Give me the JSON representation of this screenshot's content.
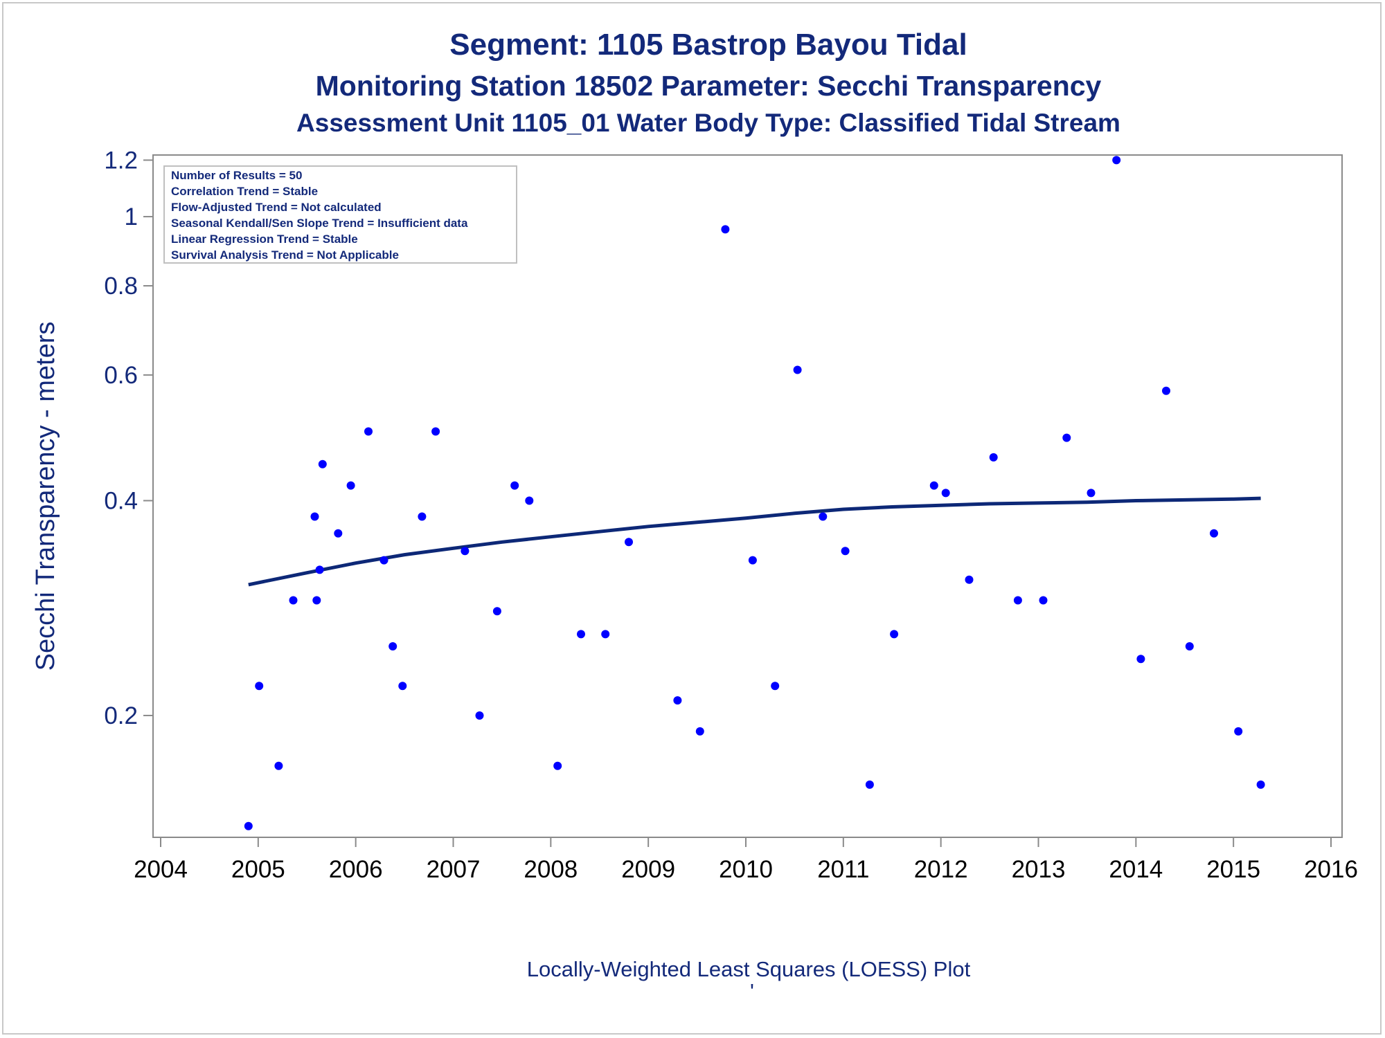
{
  "titles": {
    "line1": "Segment: 1105  Bastrop Bayou Tidal",
    "line2": "Monitoring Station 18502 Parameter: Secchi Transparency",
    "line3": "Assessment Unit 1105_01   Water Body Type: Classified Tidal Stream"
  },
  "stats_box": [
    "Number of Results = 50",
    "Correlation Trend = Stable",
    "Flow-Adjusted Trend = Not calculated",
    "Seasonal Kendall/Sen Slope Trend = Insufficient data",
    "Linear Regression Trend = Stable",
    "Survival Analysis Trend = Not Applicable"
  ],
  "footnote": "Locally-Weighted Least Squares (LOESS) Plot",
  "footnote_mark": "'",
  "colors": {
    "text": "#13297a",
    "points": "#0000ff",
    "loess_line": "#0d2877",
    "axis": "#8a8a8a"
  },
  "chart_data": {
    "type": "scatter",
    "y_scale": "log",
    "xlabel": "",
    "ylabel": "Secchi Transparency - meters",
    "xlim": [
      2004,
      2016
    ],
    "ylim": [
      0.135,
      1.22
    ],
    "x_ticks": [
      2004,
      2005,
      2006,
      2007,
      2008,
      2009,
      2010,
      2011,
      2012,
      2013,
      2014,
      2015,
      2016
    ],
    "y_ticks": [
      0.2,
      0.4,
      0.6,
      0.8,
      1,
      1.2
    ],
    "y_tick_labels": [
      "0.2",
      "0.4",
      "0.6",
      "0.8",
      "1",
      "1.2"
    ],
    "grid": false,
    "series": [
      {
        "kind": "points",
        "points": [
          {
            "x": 2004.9,
            "y": 0.14
          },
          {
            "x": 2005.01,
            "y": 0.22
          },
          {
            "x": 2005.21,
            "y": 0.17
          },
          {
            "x": 2005.36,
            "y": 0.29
          },
          {
            "x": 2005.58,
            "y": 0.38
          },
          {
            "x": 2005.6,
            "y": 0.29
          },
          {
            "x": 2005.63,
            "y": 0.32
          },
          {
            "x": 2005.66,
            "y": 0.45
          },
          {
            "x": 2005.82,
            "y": 0.36
          },
          {
            "x": 2005.95,
            "y": 0.42
          },
          {
            "x": 2006.13,
            "y": 0.5
          },
          {
            "x": 2006.29,
            "y": 0.33
          },
          {
            "x": 2006.38,
            "y": 0.25
          },
          {
            "x": 2006.48,
            "y": 0.22
          },
          {
            "x": 2006.68,
            "y": 0.38
          },
          {
            "x": 2006.82,
            "y": 0.5
          },
          {
            "x": 2007.12,
            "y": 0.34
          },
          {
            "x": 2007.27,
            "y": 0.2
          },
          {
            "x": 2007.45,
            "y": 0.28
          },
          {
            "x": 2007.63,
            "y": 0.42
          },
          {
            "x": 2007.78,
            "y": 0.4
          },
          {
            "x": 2008.07,
            "y": 0.17
          },
          {
            "x": 2008.31,
            "y": 0.26
          },
          {
            "x": 2008.56,
            "y": 0.26
          },
          {
            "x": 2008.8,
            "y": 0.35
          },
          {
            "x": 2009.3,
            "y": 0.21
          },
          {
            "x": 2009.53,
            "y": 0.19
          },
          {
            "x": 2009.79,
            "y": 0.96
          },
          {
            "x": 2010.07,
            "y": 0.33
          },
          {
            "x": 2010.3,
            "y": 0.22
          },
          {
            "x": 2010.53,
            "y": 0.61
          },
          {
            "x": 2010.79,
            "y": 0.38
          },
          {
            "x": 2011.02,
            "y": 0.34
          },
          {
            "x": 2011.27,
            "y": 0.16
          },
          {
            "x": 2011.52,
            "y": 0.26
          },
          {
            "x": 2011.93,
            "y": 0.42
          },
          {
            "x": 2012.05,
            "y": 0.41
          },
          {
            "x": 2012.29,
            "y": 0.31
          },
          {
            "x": 2012.54,
            "y": 0.46
          },
          {
            "x": 2012.79,
            "y": 0.29
          },
          {
            "x": 2013.05,
            "y": 0.29
          },
          {
            "x": 2013.29,
            "y": 0.49
          },
          {
            "x": 2013.54,
            "y": 0.41
          },
          {
            "x": 2013.8,
            "y": 1.2
          },
          {
            "x": 2014.05,
            "y": 0.24
          },
          {
            "x": 2014.31,
            "y": 0.57
          },
          {
            "x": 2014.55,
            "y": 0.25
          },
          {
            "x": 2014.8,
            "y": 0.36
          },
          {
            "x": 2015.05,
            "y": 0.19
          },
          {
            "x": 2015.28,
            "y": 0.16
          }
        ]
      },
      {
        "kind": "loess",
        "points": [
          {
            "x": 2004.9,
            "y": 0.305
          },
          {
            "x": 2005.5,
            "y": 0.317
          },
          {
            "x": 2006.0,
            "y": 0.327
          },
          {
            "x": 2006.5,
            "y": 0.336
          },
          {
            "x": 2007.0,
            "y": 0.343
          },
          {
            "x": 2007.5,
            "y": 0.35
          },
          {
            "x": 2008.0,
            "y": 0.356
          },
          {
            "x": 2008.5,
            "y": 0.362
          },
          {
            "x": 2009.0,
            "y": 0.368
          },
          {
            "x": 2009.5,
            "y": 0.373
          },
          {
            "x": 2010.0,
            "y": 0.378
          },
          {
            "x": 2010.5,
            "y": 0.384
          },
          {
            "x": 2011.0,
            "y": 0.389
          },
          {
            "x": 2011.5,
            "y": 0.392
          },
          {
            "x": 2012.0,
            "y": 0.394
          },
          {
            "x": 2012.5,
            "y": 0.396
          },
          {
            "x": 2013.0,
            "y": 0.397
          },
          {
            "x": 2013.5,
            "y": 0.398
          },
          {
            "x": 2014.0,
            "y": 0.4
          },
          {
            "x": 2014.5,
            "y": 0.401
          },
          {
            "x": 2015.0,
            "y": 0.402
          },
          {
            "x": 2015.28,
            "y": 0.403
          }
        ]
      }
    ]
  }
}
